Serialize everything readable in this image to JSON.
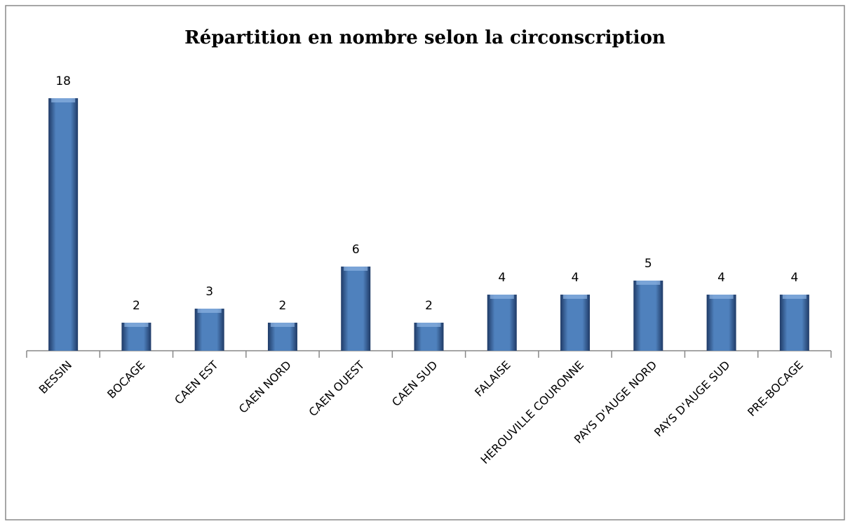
{
  "chart_data": {
    "type": "bar",
    "title": "Répartition en nombre selon la circonscription",
    "categories": [
      "BESSIN",
      "BOCAGE",
      "CAEN EST",
      "CAEN NORD",
      "CAEN OUEST",
      "CAEN SUD",
      "FALAISE",
      "HEROUVILLE COURONNE",
      "PAYS D'AUGE NORD",
      "PAYS D'AUGE SUD",
      "PRE-BOCAGE"
    ],
    "values": [
      18,
      2,
      3,
      2,
      6,
      2,
      4,
      4,
      5,
      4,
      4
    ],
    "color": "#4f81bd",
    "ylim": [
      0,
      20
    ]
  }
}
